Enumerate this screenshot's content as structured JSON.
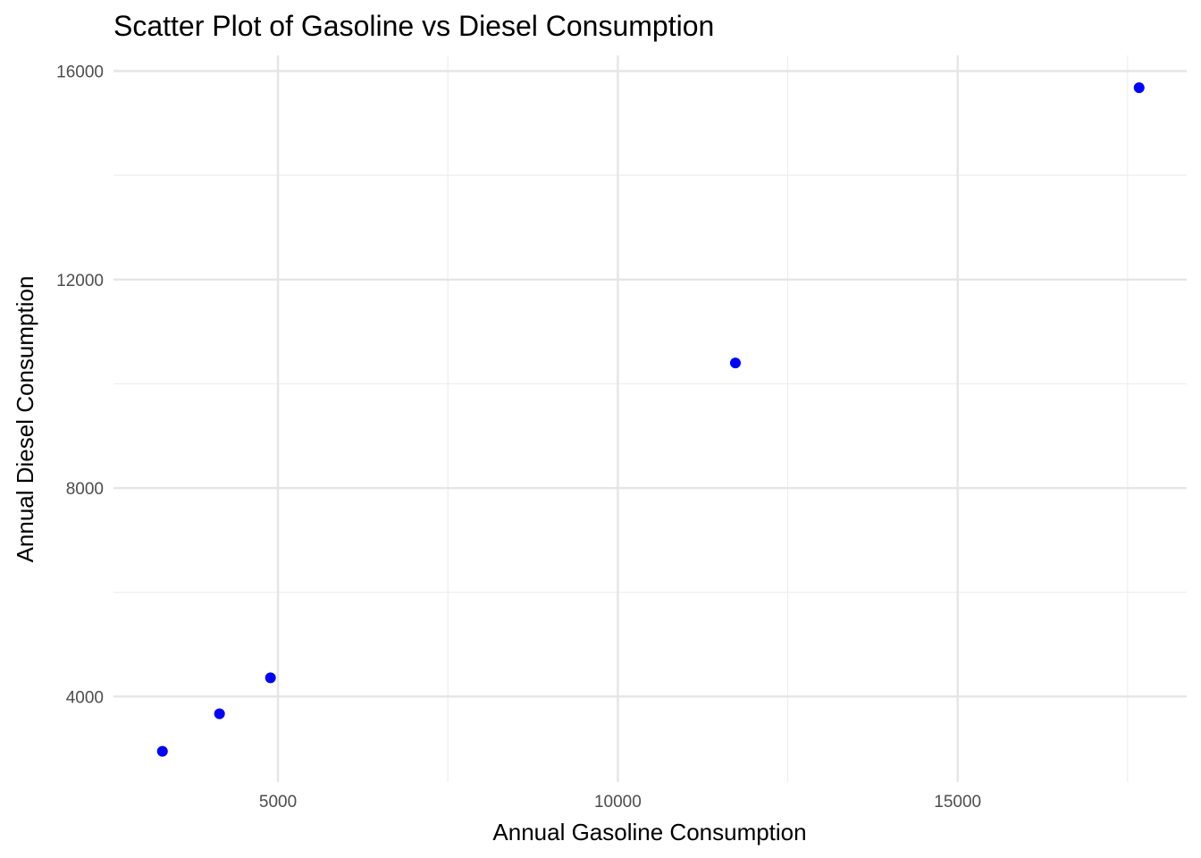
{
  "chart_data": {
    "type": "scatter",
    "title": "Scatter Plot of Gasoline vs Diesel Consumption",
    "xlabel": "Annual Gasoline Consumption",
    "ylabel": "Annual Diesel Consumption",
    "xlim": [
      2580,
      18370
    ],
    "ylim": [
      2360,
      16300
    ],
    "x_major_ticks": [
      5000,
      10000,
      15000
    ],
    "x_tick_labels": [
      "5000",
      "10000",
      "15000"
    ],
    "x_minor_ticks": [
      2500,
      7500,
      12500,
      17500
    ],
    "y_major_ticks": [
      4000,
      8000,
      12000,
      16000
    ],
    "y_tick_labels": [
      "4000",
      "8000",
      "12000",
      "16000"
    ],
    "y_minor_ticks": [
      2000,
      6000,
      10000,
      14000
    ],
    "grid": true,
    "legend": "none",
    "point_color": "#0000ff",
    "points": [
      {
        "x": 3300,
        "y": 2950
      },
      {
        "x": 4140,
        "y": 3670
      },
      {
        "x": 4890,
        "y": 4360
      },
      {
        "x": 11730,
        "y": 10400
      },
      {
        "x": 17670,
        "y": 15680
      }
    ]
  }
}
